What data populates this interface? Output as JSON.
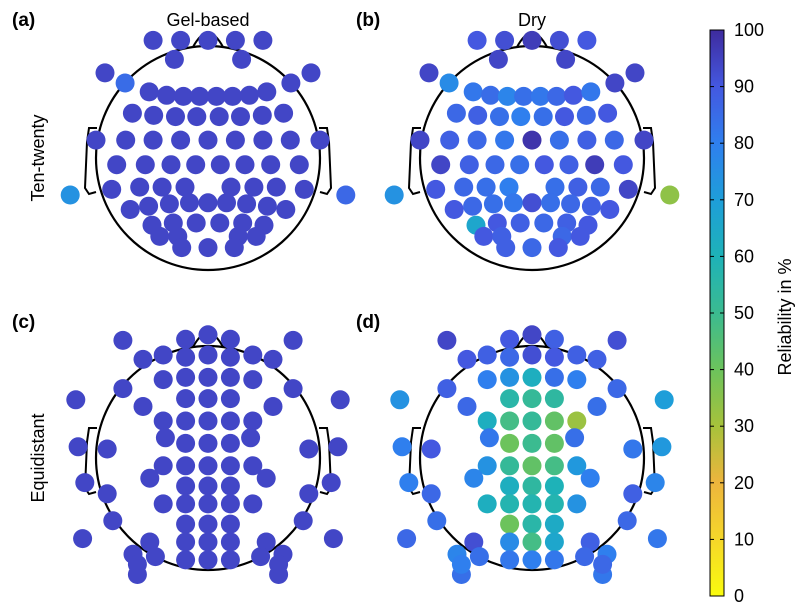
{
  "columns": [
    "Gel-based",
    "Dry"
  ],
  "rows": [
    "Ten-twenty",
    "Equidistant"
  ],
  "colorbar": {
    "label": "Reliability in %",
    "ticks": [
      0,
      10,
      20,
      30,
      40,
      50,
      60,
      70,
      80,
      90,
      100
    ],
    "range": [
      0,
      100
    ],
    "colormap": "parula"
  },
  "chart_data": [
    {
      "type": "scatter",
      "panel_label": "(a)",
      "column": "Gel-based",
      "row": "Ten-twenty",
      "color_scale": "Reliability in %",
      "x": [
        -0.49,
        -0.245,
        0,
        0.245,
        0.49,
        -0.3,
        0.3,
        -0.92,
        0.92,
        -0.74,
        -0.525,
        -0.37,
        -0.22,
        -0.075,
        0.075,
        0.22,
        0.37,
        0.525,
        0.74,
        -0.675,
        -0.485,
        -0.29,
        -0.1,
        0.1,
        0.29,
        0.485,
        0.675,
        -1.0,
        -0.735,
        -0.49,
        -0.245,
        0,
        0.245,
        0.49,
        0.735,
        1.0,
        -0.815,
        -0.56,
        -0.33,
        -0.11,
        0.11,
        0.33,
        0.56,
        0.815,
        -0.86,
        -0.61,
        -0.41,
        -0.205,
        0.205,
        0.41,
        0.61,
        0.86,
        -1.23,
        1.23,
        -0.695,
        -0.53,
        -0.345,
        -0.165,
        0,
        0.165,
        0.345,
        0.53,
        0.695,
        -0.5,
        -0.31,
        -0.105,
        0.105,
        0.31,
        0.5,
        -0.43,
        -0.27,
        0.27,
        0.43,
        -0.235,
        0,
        0.235
      ],
      "y": [
        1.05,
        1.05,
        1.05,
        1.05,
        1.05,
        0.88,
        0.88,
        0.76,
        0.76,
        0.67,
        0.59,
        0.56,
        0.55,
        0.55,
        0.55,
        0.55,
        0.56,
        0.59,
        0.67,
        0.4,
        0.38,
        0.37,
        0.37,
        0.37,
        0.37,
        0.38,
        0.4,
        0.16,
        0.16,
        0.16,
        0.16,
        0.16,
        0.16,
        0.16,
        0.16,
        0.16,
        -0.06,
        -0.06,
        -0.06,
        -0.06,
        -0.06,
        -0.06,
        -0.06,
        -0.06,
        -0.28,
        -0.26,
        -0.26,
        -0.26,
        -0.26,
        -0.26,
        -0.26,
        -0.28,
        -0.33,
        -0.33,
        -0.46,
        -0.43,
        -0.41,
        -0.4,
        -0.4,
        -0.4,
        -0.41,
        -0.43,
        -0.46,
        -0.6,
        -0.58,
        -0.58,
        -0.58,
        -0.58,
        -0.6,
        -0.7,
        -0.7,
        -0.7,
        -0.7,
        -0.8,
        -0.8,
        -0.8
      ],
      "values": [
        94,
        94,
        94,
        94,
        94,
        94,
        94,
        94,
        94,
        85,
        94,
        94,
        94,
        94,
        94,
        94,
        94,
        94,
        94,
        94,
        94,
        94,
        94,
        94,
        94,
        94,
        94,
        94,
        94,
        94,
        94,
        94,
        94,
        94,
        94,
        94,
        94,
        94,
        94,
        94,
        94,
        94,
        94,
        94,
        94,
        94,
        94,
        94,
        94,
        94,
        94,
        94,
        74,
        86,
        94,
        94,
        94,
        94,
        94,
        94,
        94,
        94,
        94,
        94,
        94,
        94,
        94,
        94,
        94,
        94,
        94,
        94,
        94,
        94,
        94,
        94
      ]
    },
    {
      "type": "scatter",
      "panel_label": "(b)",
      "column": "Dry",
      "row": "Ten-twenty",
      "color_scale": "Reliability in %",
      "x": [
        -0.49,
        -0.245,
        0,
        0.245,
        0.49,
        -0.3,
        0.3,
        -0.92,
        0.92,
        -0.74,
        -0.525,
        -0.37,
        -0.22,
        -0.075,
        0.075,
        0.22,
        0.37,
        0.525,
        0.74,
        -0.675,
        -0.485,
        -0.29,
        -0.1,
        0.1,
        0.29,
        0.485,
        0.675,
        -1.0,
        -0.735,
        -0.49,
        -0.245,
        0,
        0.245,
        0.49,
        0.735,
        1.0,
        -0.815,
        -0.56,
        -0.33,
        -0.11,
        0.11,
        0.33,
        0.56,
        0.815,
        -0.86,
        -0.61,
        -0.41,
        -0.205,
        0.205,
        0.41,
        0.61,
        0.86,
        -1.23,
        1.23,
        -0.695,
        -0.53,
        -0.345,
        -0.165,
        0,
        0.165,
        0.345,
        0.53,
        0.695,
        -0.5,
        -0.31,
        -0.105,
        0.105,
        0.31,
        0.5,
        -0.43,
        -0.27,
        0.27,
        0.43,
        -0.235,
        0,
        0.235
      ],
      "y": [
        1.05,
        1.05,
        1.05,
        1.05,
        1.05,
        0.88,
        0.88,
        0.76,
        0.76,
        0.67,
        0.59,
        0.56,
        0.55,
        0.55,
        0.55,
        0.55,
        0.56,
        0.59,
        0.67,
        0.4,
        0.38,
        0.37,
        0.37,
        0.37,
        0.37,
        0.38,
        0.4,
        0.16,
        0.16,
        0.16,
        0.16,
        0.16,
        0.16,
        0.16,
        0.16,
        0.16,
        -0.06,
        -0.06,
        -0.06,
        -0.06,
        -0.06,
        -0.06,
        -0.06,
        -0.06,
        -0.28,
        -0.26,
        -0.26,
        -0.26,
        -0.26,
        -0.26,
        -0.26,
        -0.28,
        -0.33,
        -0.33,
        -0.46,
        -0.43,
        -0.41,
        -0.4,
        -0.4,
        -0.4,
        -0.41,
        -0.43,
        -0.46,
        -0.6,
        -0.58,
        -0.58,
        -0.58,
        -0.58,
        -0.6,
        -0.7,
        -0.7,
        -0.7,
        -0.7,
        -0.8,
        -0.8,
        -0.8
      ],
      "values": [
        90,
        92,
        96,
        92,
        90,
        94,
        94,
        94,
        94,
        76,
        82,
        85,
        78,
        84,
        82,
        86,
        90,
        82,
        94,
        86,
        88,
        84,
        80,
        84,
        90,
        86,
        90,
        94,
        88,
        86,
        82,
        98,
        84,
        88,
        86,
        94,
        94,
        88,
        86,
        84,
        90,
        88,
        96,
        90,
        90,
        86,
        84,
        80,
        84,
        88,
        86,
        94,
        74,
        34,
        90,
        86,
        84,
        82,
        92,
        84,
        86,
        88,
        90,
        66,
        90,
        88,
        86,
        88,
        90,
        90,
        88,
        86,
        90,
        88,
        86,
        90
      ]
    },
    {
      "type": "scatter",
      "panel_label": "(c)",
      "column": "Gel-based",
      "row": "Equidistant",
      "color_scale": "Reliability in %",
      "x": [
        -0.2,
        0,
        0.2,
        -0.4,
        -0.2,
        0,
        0.2,
        0.4,
        -0.4,
        -0.2,
        0,
        0.2,
        0.4,
        -0.2,
        0,
        0.2,
        -0.4,
        -0.2,
        0,
        0.2,
        0.4,
        -0.2,
        0,
        0.2,
        -0.4,
        -0.2,
        0,
        0.2,
        0.4,
        -0.2,
        0,
        0.2,
        -0.4,
        -0.2,
        0,
        0.2,
        0.4,
        -0.2,
        0,
        0.2,
        -0.2,
        0,
        0.2,
        -0.2,
        0,
        0.2,
        -0.76,
        0.76,
        -0.76,
        0.76,
        -0.9,
        0.9,
        -0.9,
        0.9,
        -0.85,
        0.85,
        -0.58,
        0.58,
        -0.58,
        0.58,
        -0.38,
        0.38,
        -0.52,
        0.52,
        -0.52,
        0.52,
        -1.18,
        1.18,
        -1.16,
        1.16,
        -1.1,
        1.1,
        -1.12,
        1.12,
        -0.67,
        0.67,
        -0.47,
        0.47,
        -0.63,
        0.63,
        -0.63,
        0.63
      ],
      "y": [
        1.06,
        1.1,
        1.06,
        0.92,
        0.9,
        0.92,
        0.9,
        0.92,
        0.7,
        0.72,
        0.72,
        0.72,
        0.7,
        0.53,
        0.53,
        0.53,
        0.33,
        0.33,
        0.33,
        0.33,
        0.33,
        0.13,
        0.13,
        0.13,
        -0.07,
        -0.07,
        -0.07,
        -0.07,
        -0.07,
        -0.25,
        -0.25,
        -0.25,
        -0.41,
        -0.41,
        -0.41,
        -0.41,
        -0.41,
        -0.59,
        -0.59,
        -0.59,
        -0.75,
        -0.75,
        -0.75,
        -0.91,
        -0.91,
        -0.91,
        1.05,
        1.05,
        0.62,
        0.62,
        0.08,
        0.08,
        -0.32,
        -0.32,
        -0.56,
        -0.56,
        0.88,
        0.88,
        0.46,
        0.46,
        0.18,
        0.18,
        -0.18,
        -0.18,
        -0.75,
        -0.75,
        0.52,
        0.52,
        0.1,
        0.1,
        -0.22,
        -0.22,
        -0.72,
        -0.72,
        -0.86,
        -0.86,
        -0.88,
        -0.88,
        -1.04,
        -1.04,
        -0.95,
        -0.95
      ],
      "values": [
        94,
        94,
        94,
        94,
        94,
        94,
        94,
        94,
        94,
        94,
        94,
        94,
        94,
        94,
        94,
        94,
        94,
        94,
        94,
        94,
        94,
        94,
        94,
        94,
        94,
        94,
        94,
        94,
        94,
        94,
        94,
        94,
        94,
        94,
        94,
        94,
        94,
        94,
        94,
        94,
        94,
        94,
        94,
        94,
        94,
        94,
        94,
        94,
        94,
        94,
        94,
        94,
        94,
        94,
        94,
        94,
        94,
        94,
        94,
        94,
        94,
        94,
        94,
        94,
        94,
        94,
        94,
        94,
        94,
        94,
        94,
        94,
        94,
        94,
        94,
        94,
        94,
        94,
        94,
        94,
        94,
        94
      ]
    },
    {
      "type": "scatter",
      "panel_label": "(d)",
      "column": "Dry",
      "row": "Equidistant",
      "color_scale": "Reliability in %",
      "x": [
        -0.2,
        0,
        0.2,
        -0.4,
        -0.2,
        0,
        0.2,
        0.4,
        -0.4,
        -0.2,
        0,
        0.2,
        0.4,
        -0.2,
        0,
        0.2,
        -0.4,
        -0.2,
        0,
        0.2,
        0.4,
        -0.2,
        0,
        0.2,
        -0.4,
        -0.2,
        0,
        0.2,
        0.4,
        -0.2,
        0,
        0.2,
        -0.4,
        -0.2,
        0,
        0.2,
        0.4,
        -0.2,
        0,
        0.2,
        -0.2,
        0,
        0.2,
        -0.2,
        0,
        0.2,
        -0.76,
        0.76,
        -0.76,
        0.76,
        -0.9,
        0.9,
        -0.9,
        0.9,
        -0.85,
        0.85,
        -0.58,
        0.58,
        -0.58,
        0.58,
        -0.38,
        0.38,
        -0.52,
        0.52,
        -0.52,
        0.52,
        -1.18,
        1.18,
        -1.16,
        1.16,
        -1.1,
        1.1,
        -1.12,
        1.12,
        -0.67,
        0.67,
        -0.47,
        0.47,
        -0.63,
        0.63,
        -0.63,
        0.63
      ],
      "y": [
        1.06,
        1.1,
        1.06,
        0.92,
        0.9,
        0.92,
        0.9,
        0.92,
        0.7,
        0.72,
        0.72,
        0.72,
        0.7,
        0.53,
        0.53,
        0.53,
        0.33,
        0.33,
        0.33,
        0.33,
        0.33,
        0.13,
        0.13,
        0.13,
        -0.07,
        -0.07,
        -0.07,
        -0.07,
        -0.07,
        -0.25,
        -0.25,
        -0.25,
        -0.41,
        -0.41,
        -0.41,
        -0.41,
        -0.41,
        -0.59,
        -0.59,
        -0.59,
        -0.75,
        -0.75,
        -0.75,
        -0.91,
        -0.91,
        -0.91,
        1.05,
        1.05,
        0.62,
        0.62,
        0.08,
        0.08,
        -0.32,
        -0.32,
        -0.56,
        -0.56,
        0.88,
        0.88,
        0.46,
        0.46,
        0.18,
        0.18,
        -0.18,
        -0.18,
        -0.75,
        -0.75,
        0.52,
        0.52,
        0.1,
        0.1,
        -0.22,
        -0.22,
        -0.72,
        -0.72,
        -0.86,
        -0.86,
        -0.88,
        -0.88,
        -1.04,
        -1.04,
        -0.95,
        -0.95
      ],
      "values": [
        90,
        94,
        88,
        88,
        86,
        92,
        90,
        88,
        80,
        74,
        62,
        84,
        80,
        56,
        52,
        54,
        62,
        48,
        52,
        42,
        32,
        40,
        50,
        42,
        74,
        52,
        42,
        48,
        72,
        62,
        54,
        60,
        62,
        58,
        58,
        58,
        74,
        40,
        56,
        64,
        76,
        48,
        66,
        82,
        80,
        82,
        94,
        92,
        88,
        86,
        90,
        82,
        86,
        88,
        84,
        86,
        90,
        88,
        86,
        84,
        82,
        84,
        78,
        80,
        92,
        88,
        74,
        70,
        80,
        72,
        80,
        78,
        86,
        82,
        78,
        80,
        84,
        86,
        84,
        82,
        80,
        86
      ]
    }
  ]
}
